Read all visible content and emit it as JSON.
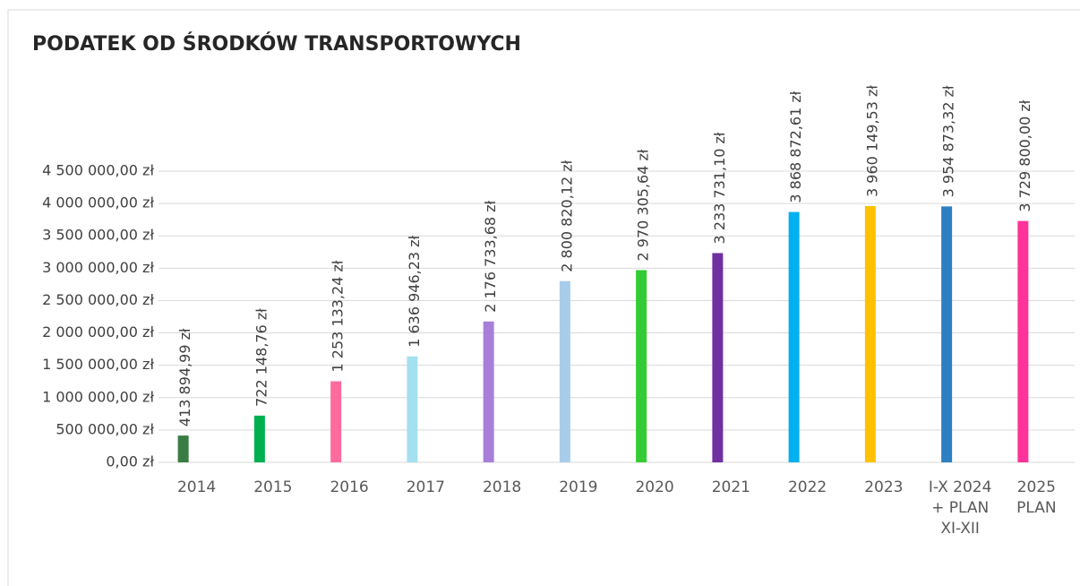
{
  "chart_data": {
    "type": "bar",
    "title": "PODATEK OD ŚRODKÓW TRANSPORTOWYCH",
    "categories": [
      "2014",
      "2015",
      "2016",
      "2017",
      "2018",
      "2019",
      "2020",
      "2021",
      "2022",
      "2023",
      "I-X 2024 + PLAN XI-XII",
      "2025 PLAN"
    ],
    "values": [
      413894.99,
      722148.76,
      1253133.24,
      1636946.23,
      2176733.68,
      2800820.12,
      2970305.64,
      3233731.1,
      3868872.61,
      3960149.53,
      3954873.32,
      3729800.0
    ],
    "value_labels": [
      "413 894,99 zł",
      "722 148,76 zł",
      "1 253 133,24 zł",
      "1 636 946,23 zł",
      "2 176 733,68 zł",
      "2 800 820,12 zł",
      "2 970 305,64 zł",
      "3 233 731,10 zł",
      "3 868 872,61 zł",
      "3 960 149,53 zł",
      "3 954 873,32 zł",
      "3 729 800,00 zł"
    ],
    "colors": [
      "#3a7d44",
      "#00b050",
      "#ff6b9d",
      "#a3e0f0",
      "#a87fd8",
      "#a8cdea",
      "#33cc33",
      "#7030a0",
      "#00b0f0",
      "#ffc000",
      "#2e7fc1",
      "#ff3399"
    ],
    "ylim": [
      0,
      4500000
    ],
    "yticks": [
      {
        "value": 0,
        "label": "0,00 zł"
      },
      {
        "value": 500000,
        "label": "500 000,00 zł"
      },
      {
        "value": 1000000,
        "label": "1 000 000,00 zł"
      },
      {
        "value": 1500000,
        "label": "1 500 000,00 zł"
      },
      {
        "value": 2000000,
        "label": "2 000 000,00 zł"
      },
      {
        "value": 2500000,
        "label": "2 500 000,00 zł"
      },
      {
        "value": 3000000,
        "label": "3 000 000,00 zł"
      },
      {
        "value": 3500000,
        "label": "3 500 000,00 zł"
      },
      {
        "value": 4000000,
        "label": "4 000 000,00 zł"
      },
      {
        "value": 4500000,
        "label": "4 500 000,00 zł"
      }
    ],
    "grid": true
  }
}
